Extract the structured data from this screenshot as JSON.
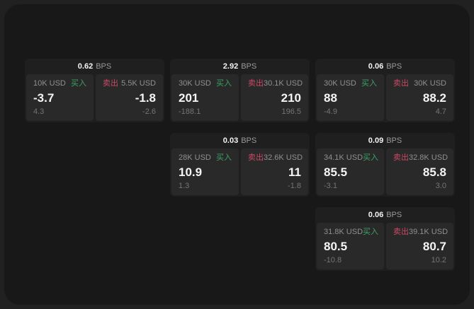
{
  "app": {
    "name": "quotes-board",
    "bps_unit": "BPS",
    "buy_label": "买入",
    "sell_label": "卖出"
  },
  "colors": {
    "outer_background": "#212121",
    "app_background": "#181818",
    "card_background": "#1f1f1f",
    "panel_background": "#292929",
    "value_text": "#f5f5f5",
    "label_text": "#909090",
    "sub_text": "#757575",
    "buy_green": "#3ca266",
    "sell_red": "#ca4a64"
  },
  "cards": [
    {
      "bps": "0.62",
      "bps_unit": "BPS",
      "grid": {
        "col": 1,
        "row": 1
      },
      "buy": {
        "amount": "10K USD",
        "side_label": "买入",
        "value": "-3.7",
        "sub": "4.3"
      },
      "sell": {
        "amount": "5.5K USD",
        "side_label": "卖出",
        "value": "-1.8",
        "sub": "-2.6"
      }
    },
    {
      "bps": "2.92",
      "bps_unit": "BPS",
      "grid": {
        "col": 2,
        "row": 1
      },
      "buy": {
        "amount": "30K USD",
        "side_label": "买入",
        "value": "201",
        "sub": "-188.1"
      },
      "sell": {
        "amount": "30.1K USD",
        "side_label": "卖出",
        "value": "210",
        "sub": "196.5"
      }
    },
    {
      "bps": "0.06",
      "bps_unit": "BPS",
      "grid": {
        "col": 3,
        "row": 1
      },
      "buy": {
        "amount": "30K USD",
        "side_label": "买入",
        "value": "88",
        "sub": "-4.9"
      },
      "sell": {
        "amount": "30K USD",
        "side_label": "卖出",
        "value": "88.2",
        "sub": "4.7"
      }
    },
    {
      "bps": "0.03",
      "bps_unit": "BPS",
      "grid": {
        "col": 2,
        "row": 2
      },
      "buy": {
        "amount": "28K USD",
        "side_label": "买入",
        "value": "10.9",
        "sub": "1.3"
      },
      "sell": {
        "amount": "32.6K USD",
        "side_label": "卖出",
        "value": "11",
        "sub": "-1.8"
      }
    },
    {
      "bps": "0.09",
      "bps_unit": "BPS",
      "grid": {
        "col": 3,
        "row": 2
      },
      "buy": {
        "amount": "34.1K USD",
        "side_label": "买入",
        "value": "85.5",
        "sub": "-3.1"
      },
      "sell": {
        "amount": "32.8K USD",
        "side_label": "卖出",
        "value": "85.8",
        "sub": "3.0"
      }
    },
    {
      "bps": "0.06",
      "bps_unit": "BPS",
      "grid": {
        "col": 3,
        "row": 3
      },
      "buy": {
        "amount": "31.8K USD",
        "side_label": "买入",
        "value": "80.5",
        "sub": "-10.8"
      },
      "sell": {
        "amount": "39.1K USD",
        "side_label": "卖出",
        "value": "80.7",
        "sub": "10.2"
      }
    }
  ]
}
